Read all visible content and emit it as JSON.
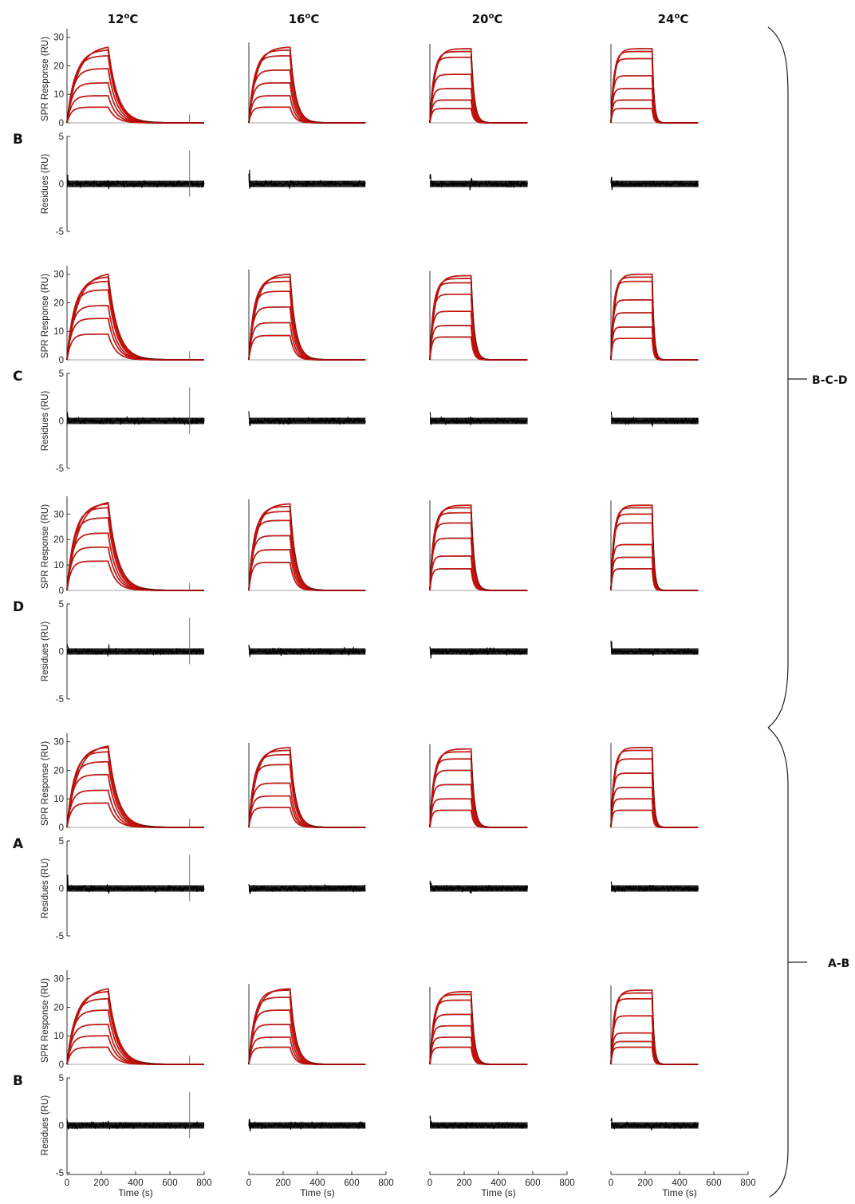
{
  "figure": {
    "columns": [
      {
        "title_base": "12",
        "title_sup": "o",
        "title_unit": "C"
      },
      {
        "title_base": "16",
        "title_sup": "o",
        "title_unit": "C"
      },
      {
        "title_base": "20",
        "title_sup": "o",
        "title_unit": "C"
      },
      {
        "title_base": "24",
        "title_sup": "o",
        "title_unit": "C"
      }
    ],
    "rows": [
      "B",
      "C",
      "D",
      "A",
      "B"
    ],
    "groups": [
      "B-C-D",
      "A-B"
    ],
    "ylabel_response": "SPR Response (RU)",
    "ylabel_residues": "Residues (RU)",
    "xlabel": "Time (s)",
    "colors": {
      "fit": "#e8120c",
      "data": "#000000"
    }
  },
  "chart_data": {
    "type": "line",
    "layout": "5 rows x 4 columns of sensorgram panels with residual panels below each",
    "x": {
      "label": "Time (s)",
      "lim": [
        0,
        800
      ],
      "ticks": [
        "0",
        "200",
        "400",
        "600",
        "800"
      ]
    },
    "response_axis": {
      "label": "SPR Response (RU)",
      "ticks_by_row": [
        [
          "0",
          "10",
          "20",
          "30"
        ],
        [
          "0",
          "10",
          "20",
          "30"
        ],
        [
          "0",
          "10",
          "20",
          "30"
        ],
        [
          "0",
          "10",
          "20",
          "30"
        ],
        [
          "0",
          "10",
          "20",
          "30"
        ]
      ]
    },
    "residues_axis": {
      "label": "Residues (RU)",
      "lim": [
        -5,
        5
      ],
      "ticks": [
        "-5",
        "0",
        "5"
      ]
    },
    "injection_end_s": 240,
    "run_end_s": [
      800,
      680,
      570,
      510
    ],
    "rows": [
      {
        "label": "B",
        "ymax": 33,
        "plateaus": [
          [
            26.5,
            25.5,
            23.5,
            19,
            14,
            9.5,
            5.5
          ],
          [
            26.5,
            25.5,
            23.5,
            18.5,
            14,
            9.5,
            5.5
          ],
          [
            26,
            25,
            23,
            17,
            12,
            8,
            5
          ],
          [
            26,
            25,
            22.5,
            16.5,
            12,
            8,
            5
          ]
        ]
      },
      {
        "label": "C",
        "ymax": 33,
        "plateaus": [
          [
            30,
            29,
            27.5,
            24.5,
            19,
            14.5,
            9
          ],
          [
            30,
            29,
            27.5,
            24,
            18.5,
            13,
            8.5
          ],
          [
            29.5,
            28.5,
            27,
            23,
            17,
            12,
            8
          ],
          [
            30,
            29,
            27.5,
            21,
            16.5,
            11.5,
            7.5
          ]
        ]
      },
      {
        "label": "D",
        "ymax": 37,
        "plateaus": [
          [
            34.5,
            34,
            32.5,
            28.5,
            22.5,
            17,
            11.5
          ],
          [
            34,
            33,
            31,
            27.5,
            21.5,
            16,
            11
          ],
          [
            33.5,
            32.5,
            30.5,
            26.5,
            20.5,
            13.5,
            8.5
          ],
          [
            33.5,
            32.5,
            30,
            26.5,
            18,
            13,
            8.5
          ]
        ]
      },
      {
        "label": "A",
        "ymax": 33,
        "plateaus": [
          [
            28.5,
            28,
            26.5,
            23,
            18.5,
            13,
            8.5
          ],
          [
            28,
            27,
            25.5,
            22,
            15.5,
            11,
            7
          ],
          [
            27.5,
            26.5,
            24,
            20,
            15,
            10,
            6
          ],
          [
            28,
            27,
            24,
            19,
            14,
            10,
            6
          ]
        ]
      },
      {
        "label": "B",
        "ymax": 33,
        "plateaus": [
          [
            26.5,
            25.5,
            23,
            19,
            14,
            10,
            6
          ],
          [
            26.5,
            26,
            23.5,
            19,
            14,
            9.5,
            6
          ],
          [
            25.5,
            24.5,
            22.5,
            17.5,
            13.5,
            9.5,
            6
          ],
          [
            26,
            25,
            23,
            17,
            11,
            8,
            6
          ]
        ]
      }
    ],
    "association_rate_by_column": [
      0.035,
      0.05,
      0.075,
      0.1
    ],
    "dissociation_rate_by_column": [
      0.018,
      0.03,
      0.055,
      0.09
    ],
    "residual_noise_amplitude": 0.5
  }
}
